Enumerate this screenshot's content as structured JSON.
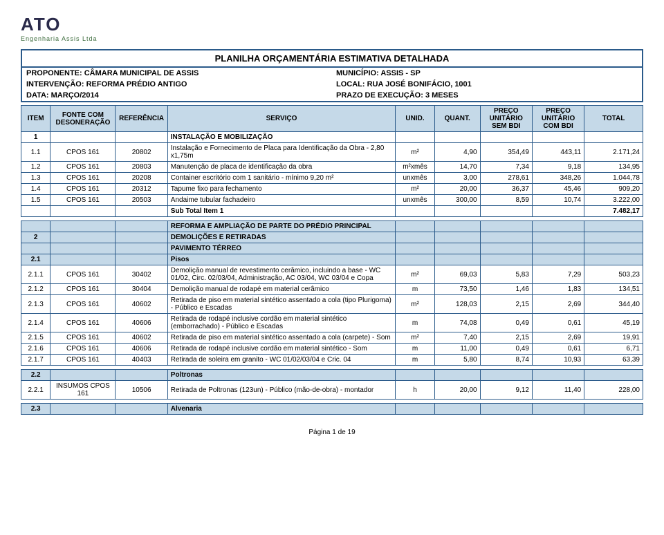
{
  "logo": {
    "text": "ATO",
    "sub": "Engenharia Assis Ltda"
  },
  "title": "PLANILHA ORÇAMENTÁRIA ESTIMATIVA DETALHADA",
  "meta": {
    "proponente_label": "PROPONENTE: CÂMARA MUNICIPAL DE ASSIS",
    "municipio_label": "MUNICÍPIO: ASSIS - SP",
    "intervencao_label": "INTERVENÇÃO: REFORMA PRÉDIO ANTIGO",
    "local_label": "LOCAL: RUA JOSÉ BONIFÁCIO, 1001",
    "data_label": "DATA: MARÇO/2014",
    "prazo_label": "PRAZO DE EXECUÇÃO: 3 MESES"
  },
  "headers": {
    "item": "ITEM",
    "fonte": "FONTE COM DESONERAÇÃO",
    "ref": "REFERÊNCIA",
    "servico": "SERVIÇO",
    "unid": "UNID.",
    "quant": "QUANT.",
    "preco1": "PREÇO UNITÁRIO SEM BDI",
    "preco2": "PREÇO UNITÁRIO COM BDI",
    "total": "TOTAL"
  },
  "sections": [
    {
      "item": "1",
      "label": "INSTALAÇÃO E MOBILIZAÇÃO",
      "rows": [
        {
          "item": "1.1",
          "fonte": "CPOS 161",
          "ref": "20802",
          "serv": "Instalação e Fornecimento de Placa para Identificação da Obra - 2,80 x1,75m",
          "unid": "m²",
          "qt": "4,90",
          "p1": "354,49",
          "p2": "443,11",
          "tot": "2.171,24"
        },
        {
          "item": "1.2",
          "fonte": "CPOS 161",
          "ref": "20803",
          "serv": "Manutenção de placa de identificação da obra",
          "unid": "m²xmês",
          "qt": "14,70",
          "p1": "7,34",
          "p2": "9,18",
          "tot": "134,95"
        },
        {
          "item": "1.3",
          "fonte": "CPOS 161",
          "ref": "20208",
          "serv": "Container escritório com 1 sanitário - mínimo 9,20 m²",
          "unid": "unxmês",
          "qt": "3,00",
          "p1": "278,61",
          "p2": "348,26",
          "tot": "1.044,78"
        },
        {
          "item": "1.4",
          "fonte": "CPOS 161",
          "ref": "20312",
          "serv": "Tapume fixo para fechamento",
          "unid": "m²",
          "qt": "20,00",
          "p1": "36,37",
          "p2": "45,46",
          "tot": "909,20"
        },
        {
          "item": "1.5",
          "fonte": "CPOS 161",
          "ref": "20503",
          "serv": "Andaime tubular fachadeiro",
          "unid": "unxmês",
          "qt": "300,00",
          "p1": "8,59",
          "p2": "10,74",
          "tot": "3.222,00"
        }
      ],
      "subtotal_label": "Sub Total Item 1",
      "subtotal": "7.482,17"
    },
    {
      "pre_label": "REFORMA E AMPLIAÇÃO DE PARTE DO PRÉDIO PRINCIPAL",
      "item": "2",
      "label": "DEMOLIÇÕES E RETIRADAS",
      "sub_label": "PAVIMENTO TÉRREO",
      "groups": [
        {
          "item": "2.1",
          "label": "Pisos",
          "rows": [
            {
              "item": "2.1.1",
              "fonte": "CPOS 161",
              "ref": "30402",
              "serv": "Demolição manual de revestimento cerâmico, incluindo a base - WC 01/02, Circ. 02/03/04, Administração, AC 03/04, WC 03/04 e Copa",
              "unid": "m²",
              "qt": "69,03",
              "p1": "5,83",
              "p2": "7,29",
              "tot": "503,23"
            },
            {
              "item": "2.1.2",
              "fonte": "CPOS 161",
              "ref": "30404",
              "serv": "Demolição manual de rodapé em material cerâmico",
              "unid": "m",
              "qt": "73,50",
              "p1": "1,46",
              "p2": "1,83",
              "tot": "134,51"
            },
            {
              "item": "2.1.3",
              "fonte": "CPOS 161",
              "ref": "40602",
              "serv": "Retirada de piso em material sintético assentado a cola (tipo Plurigoma) - Público e Escadas",
              "unid": "m²",
              "qt": "128,03",
              "p1": "2,15",
              "p2": "2,69",
              "tot": "344,40"
            },
            {
              "item": "2.1.4",
              "fonte": "CPOS 161",
              "ref": "40606",
              "serv": "Retirada de rodapé inclusive cordão em material sintético (emborrachado) - Público e Escadas",
              "unid": "m",
              "qt": "74,08",
              "p1": "0,49",
              "p2": "0,61",
              "tot": "45,19"
            },
            {
              "item": "2.1.5",
              "fonte": "CPOS 161",
              "ref": "40602",
              "serv": "Retirada de piso em material sintético assentado a cola (carpete) - Som",
              "unid": "m²",
              "qt": "7,40",
              "p1": "2,15",
              "p2": "2,69",
              "tot": "19,91"
            },
            {
              "item": "2.1.6",
              "fonte": "CPOS 161",
              "ref": "40606",
              "serv": "Retirada de rodapé inclusive cordão em material sintético - Som",
              "unid": "m",
              "qt": "11,00",
              "p1": "0,49",
              "p2": "0,61",
              "tot": "6,71"
            },
            {
              "item": "2.1.7",
              "fonte": "CPOS 161",
              "ref": "40403",
              "serv": "Retirada de soleira em granito - WC 01/02/03/04 e Cric. 04",
              "unid": "m",
              "qt": "5,80",
              "p1": "8,74",
              "p2": "10,93",
              "tot": "63,39"
            }
          ]
        },
        {
          "item": "2.2",
          "label": "Poltronas",
          "rows": [
            {
              "item": "2.2.1",
              "fonte": "INSUMOS CPOS 161",
              "ref": "10506",
              "serv": "Retirada de Poltronas (123un) - Público (mão-de-obra) - montador",
              "unid": "h",
              "qt": "20,00",
              "p1": "9,12",
              "p2": "11,40",
              "tot": "228,00"
            }
          ]
        },
        {
          "item": "2.3",
          "label": "Alvenaria",
          "rows": []
        }
      ]
    }
  ],
  "footer": "Página 1 de 19",
  "colors": {
    "border": "#2a5a8a",
    "header_bg": "#c5d9e8",
    "text": "#000000"
  }
}
